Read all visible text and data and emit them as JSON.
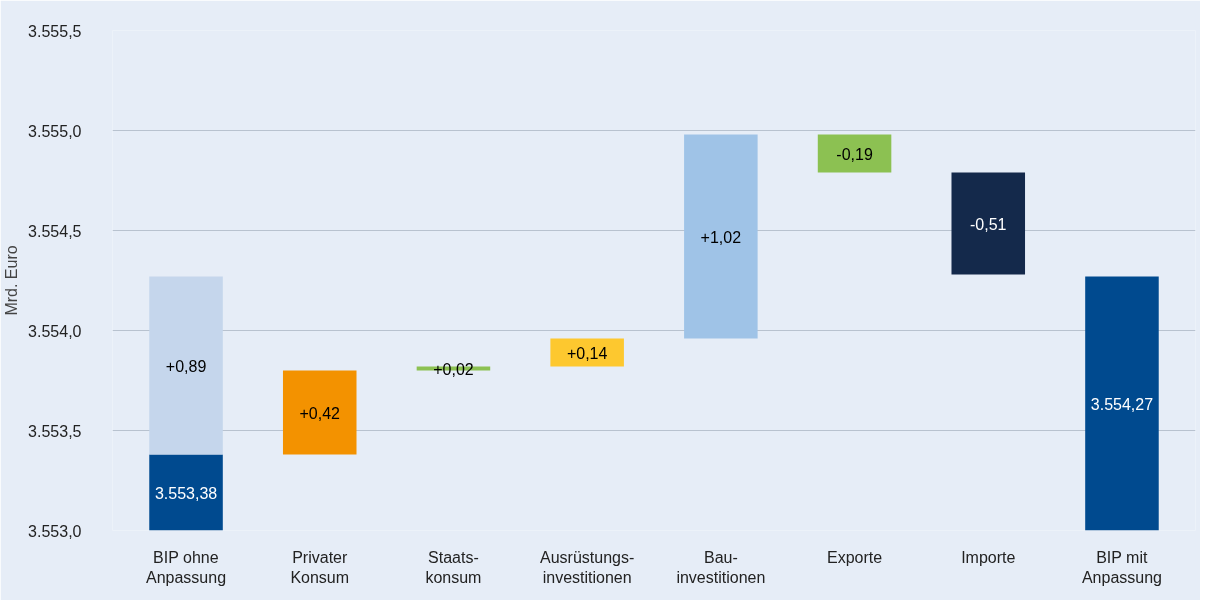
{
  "chart_data": {
    "type": "bar",
    "ylabel": "Mrd. Euro",
    "categories": [
      "BIP ohne\nAnpassung",
      "Privater\nKonsum",
      "Staats-\nkonsum",
      "Ausrüstungs-\ninvestitionen",
      "Bau-\ninvestitionen",
      "Exporte",
      "Importe",
      "BIP mit\nAnpassung"
    ],
    "series": [
      {
        "values": [
          0.38,
          null,
          null,
          null,
          null,
          null,
          null,
          1.27
        ],
        "base": [
          3553.0,
          null,
          null,
          null,
          null,
          null,
          null,
          3553.0
        ],
        "colors": [
          "#004a8f",
          null,
          null,
          null,
          null,
          null,
          null,
          "#004a8f"
        ],
        "value_labels": [
          "3.553,38",
          null,
          null,
          null,
          null,
          null,
          null,
          "3.554,27"
        ]
      },
      {
        "values": [
          0.89,
          0.42,
          0.02,
          0.14,
          1.02,
          -0.19,
          -0.51,
          null
        ],
        "base": [
          3553.38,
          3553.38,
          3553.8,
          3553.82,
          3553.96,
          3554.98,
          3554.79,
          null
        ],
        "colors": [
          "#c5d6ec",
          "#f39200",
          "#8cc152",
          "#fdc82f",
          "#9fc3e7",
          "#8cc152",
          "#14294b",
          null
        ],
        "value_labels": [
          "+0,89",
          "+0,42",
          "+0,02",
          "+0,14",
          "+1,02",
          "-0,19",
          "-0,51",
          null
        ]
      }
    ],
    "ylim": [
      3553.0,
      3555.5
    ],
    "yticks": [
      {
        "value": 3553.0,
        "label": "3.553,0"
      },
      {
        "value": 3553.5,
        "label": "3.553,5"
      },
      {
        "value": 3554.0,
        "label": "3.554,0"
      },
      {
        "value": 3554.5,
        "label": "3.554,5"
      },
      {
        "value": 3555.0,
        "label": "3.555,0"
      },
      {
        "value": 3555.5,
        "label": "3.555,5"
      }
    ],
    "grid": "y"
  }
}
